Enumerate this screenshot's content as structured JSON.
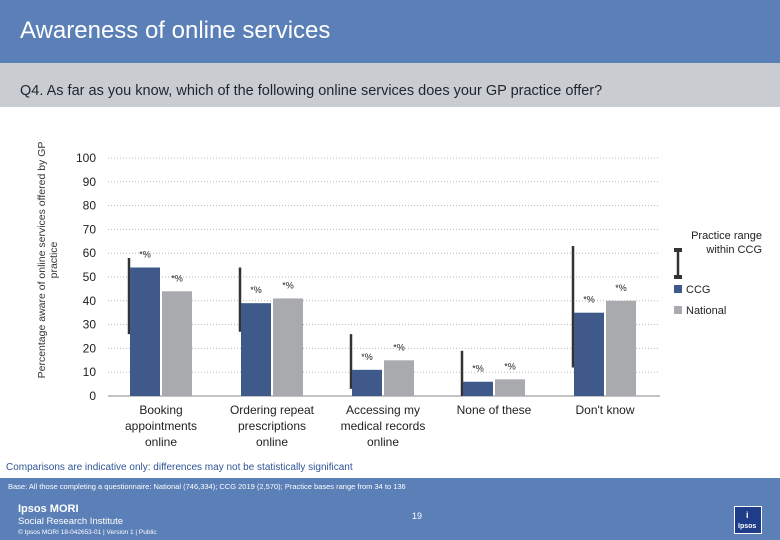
{
  "slide": {
    "title": "Awareness of online services",
    "question": "Q4. As far as you know, which of the following online services does your GP practice offer?",
    "comparison_note": "Comparisons are indicative only: differences may not be statistically significant",
    "base_note": "Base: All those completing a questionnaire: National (746,334); CCG 2019 (2,570); Practice bases range from 34 to 136",
    "logo_name": "Ipsos MORI",
    "logo_sub": "Social Research Institute",
    "copyright": "© Ipsos MORI     18-042653-01 | Version 1 | Public",
    "page_number": "19",
    "badge_text": "Ipsos"
  },
  "colors": {
    "header": "#5b7fb7",
    "ccg": "#3f5a8a",
    "national": "#a8aaad",
    "range": "#333333"
  },
  "chart_data": {
    "type": "bar",
    "ylabel": "Percentage aware of online services offered by GP practice",
    "ylim": [
      0,
      100
    ],
    "yticks": [
      0,
      10,
      20,
      30,
      40,
      50,
      60,
      70,
      80,
      90,
      100
    ],
    "categories": [
      [
        "Booking",
        "appointments",
        "online"
      ],
      [
        "Ordering repeat",
        "prescriptions",
        "online"
      ],
      [
        "Accessing my",
        "medical records",
        "online"
      ],
      [
        "None of these"
      ],
      [
        "Don't know"
      ]
    ],
    "series": [
      {
        "name": "CCG",
        "values": [
          54,
          39,
          11,
          6,
          35
        ],
        "labels": [
          "*%",
          "*%",
          "*%",
          "*%",
          "*%"
        ]
      },
      {
        "name": "National",
        "values": [
          44,
          41,
          15,
          7,
          40
        ],
        "labels": [
          "*%",
          "*%",
          "*%",
          "*%",
          "*%"
        ]
      }
    ],
    "practice_range": {
      "name": "Practice range within CCG",
      "low": [
        26,
        27,
        3,
        0,
        12
      ],
      "high": [
        58,
        54,
        26,
        19,
        63
      ]
    },
    "legend": {
      "placement": "right",
      "range_label": [
        "Practice range",
        "within CCG"
      ]
    }
  }
}
